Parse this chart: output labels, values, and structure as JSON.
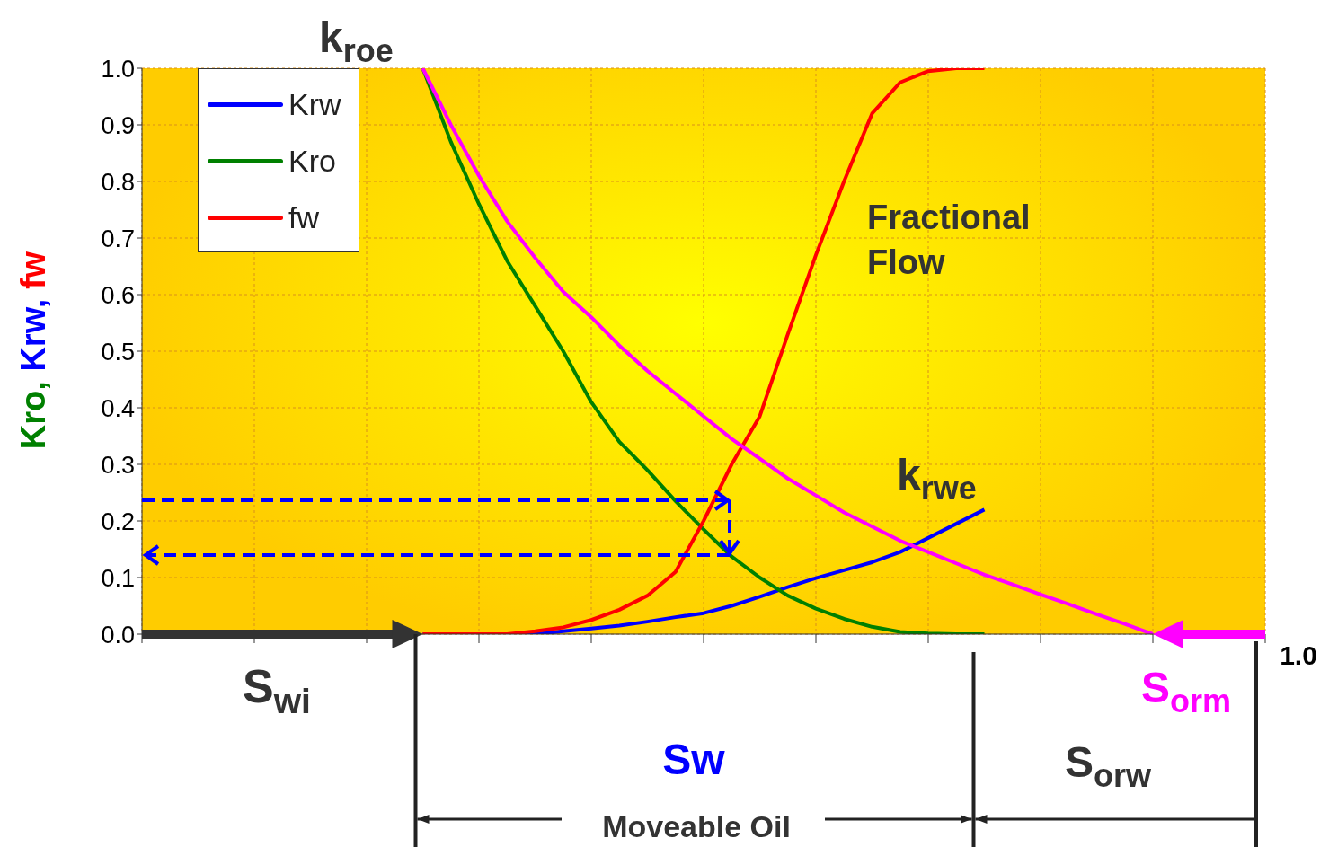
{
  "chart_data": {
    "type": "line",
    "ylabel": "Kro, Krw, fw",
    "categories": [
      null,
      null,
      null,
      null,
      null,
      null,
      null,
      null,
      null,
      null,
      null,
      null,
      null,
      null,
      null,
      null,
      null,
      null,
      null,
      null,
      null,
      null,
      null,
      null,
      null,
      null,
      null,
      null,
      null,
      null,
      null,
      null,
      null,
      null,
      null,
      null,
      null,
      null,
      null,
      null,
      null
    ],
    "ylim": [
      0,
      1
    ],
    "yticks": [
      {
        "value": 0,
        "label": "0.0"
      },
      {
        "value": 0.1,
        "label": "0.1"
      },
      {
        "value": 0.2,
        "label": "0.2"
      },
      {
        "value": 0.3,
        "label": "0.3"
      },
      {
        "value": 0.4,
        "label": "0.4"
      },
      {
        "value": 0.5,
        "label": "0.5"
      },
      {
        "value": 0.6,
        "label": "0.6"
      },
      {
        "value": 0.7,
        "label": "0.7"
      },
      {
        "value": 0.8,
        "label": "0.8"
      },
      {
        "value": 0.9,
        "label": "0.9"
      },
      {
        "value": 1,
        "label": "1.0"
      }
    ],
    "grid": true,
    "legend": "top left",
    "marker": "none",
    "line_style": "solid",
    "series": [
      {
        "name": "Krw",
        "color": "#0000ff",
        "values": [
          null,
          null,
          null,
          null,
          null,
          null,
          null,
          null,
          null,
          null,
          0,
          0,
          0,
          0,
          0,
          0.005,
          0.01,
          0.015,
          0.022,
          0.03,
          0.037,
          0.05,
          0.066,
          0.083,
          0.099,
          0.113,
          0.127,
          0.145,
          0.17,
          0.195,
          0.22,
          null,
          null,
          null,
          null,
          null,
          null,
          null,
          null,
          null,
          null
        ]
      },
      {
        "name": "Kro",
        "color": "#008000",
        "values": [
          null,
          null,
          null,
          null,
          null,
          null,
          null,
          null,
          null,
          null,
          1,
          0.87,
          0.76,
          0.66,
          0.58,
          0.5,
          0.41,
          0.34,
          0.29,
          0.235,
          0.185,
          0.137,
          0.1,
          0.068,
          0.045,
          0.027,
          0.013,
          0.004,
          0.001,
          0,
          0,
          null,
          null,
          null,
          null,
          null,
          null,
          null,
          null,
          null,
          null
        ]
      },
      {
        "name": "fw",
        "color": "#ff0000",
        "values": [
          null,
          null,
          null,
          null,
          null,
          null,
          null,
          null,
          null,
          null,
          0,
          0,
          0,
          0,
          0.005,
          0.012,
          0.025,
          0.043,
          0.068,
          0.11,
          0.2,
          0.3,
          0.385,
          0.53,
          0.67,
          0.8,
          0.92,
          0.975,
          0.995,
          1,
          1,
          null,
          null,
          null,
          null,
          null,
          null,
          null,
          null,
          null,
          null
        ]
      },
      {
        "color": "#ff00ff",
        "values": [
          null,
          null,
          null,
          null,
          null,
          null,
          null,
          null,
          null,
          null,
          1,
          0.9,
          0.81,
          0.73,
          0.665,
          0.605,
          0.56,
          0.51,
          0.465,
          0.425,
          0.385,
          0.345,
          0.31,
          0.275,
          0.245,
          0.215,
          0.19,
          0.165,
          0.145,
          0.125,
          0.105,
          0.088,
          0.07,
          0.053,
          0.035,
          0.018,
          0,
          null,
          null,
          null,
          null
        ]
      }
    ],
    "annotations": [
      "k$_{roe}$",
      "k$_{rwe}$",
      "Fractional Flow",
      "S$_{wi}$",
      "Sw",
      "S$_{orm}$",
      "S$_{orw}$",
      "Moveable Oil",
      "1.0"
    ]
  }
}
